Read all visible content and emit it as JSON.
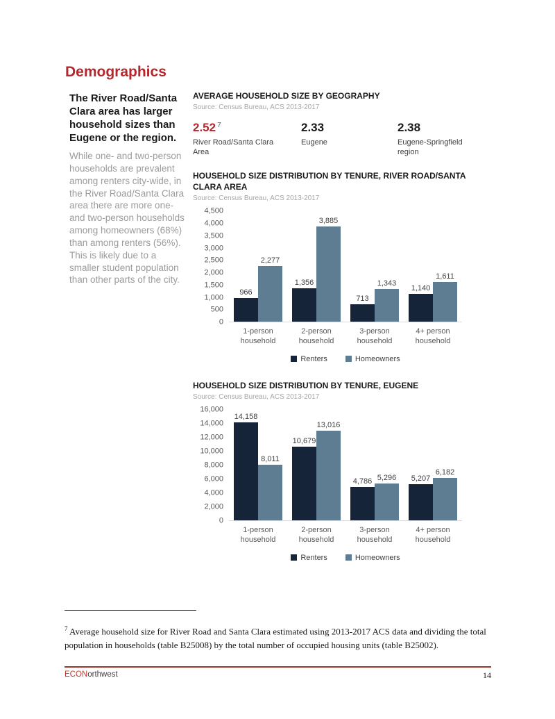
{
  "page": {
    "title": "Demographics",
    "accent_red": "#b3282d"
  },
  "sidebar": {
    "heading": "The River Road/Santa Clara area has larger household sizes than Eugene or the region.",
    "body": "While one- and two-person households are prevalent among renters city-wide, in the River Road/Santa Clara area there are more one- and two-person households among homeowners (68%) than among renters (56%). This is likely due to a smaller student population than other parts of the city."
  },
  "avg_household": {
    "title": "AVERAGE HOUSEHOLD SIZE BY GEOGRAPHY",
    "source": "Source: Census Bureau, ACS 2013-2017",
    "stats": [
      {
        "value": "2.52",
        "footnote_marker": "7",
        "label": "River Road/Santa Clara Area",
        "highlight": true
      },
      {
        "value": "2.33",
        "footnote_marker": "",
        "label": "Eugene",
        "highlight": false
      },
      {
        "value": "2.38",
        "footnote_marker": "",
        "label": "Eugene-Springfield region",
        "highlight": false
      }
    ]
  },
  "chart_data": [
    {
      "type": "bar",
      "title": "HOUSEHOLD SIZE DISTRIBUTION BY TENURE, RIVER ROAD/SANTA CLARA AREA",
      "source": "Source: Census Bureau, ACS 2013-2017",
      "categories": [
        "1-person household",
        "2-person household",
        "3-person household",
        "4+ person household"
      ],
      "series": [
        {
          "name": "Renters",
          "color": "#16243a",
          "values": [
            966,
            1356,
            713,
            1140
          ]
        },
        {
          "name": "Homeowners",
          "color": "#5e7d93",
          "values": [
            2277,
            3885,
            1343,
            1611
          ]
        }
      ],
      "ylim": [
        0,
        4500
      ],
      "ytick_step": 500,
      "grid": false,
      "legend_position": "bottom",
      "xlabel": "",
      "ylabel": ""
    },
    {
      "type": "bar",
      "title": "HOUSEHOLD SIZE DISTRIBUTION BY TENURE, EUGENE",
      "source": "Source: Census Bureau, ACS 2013-2017",
      "categories": [
        "1-person household",
        "2-person household",
        "3-person household",
        "4+ person household"
      ],
      "series": [
        {
          "name": "Renters",
          "color": "#16243a",
          "values": [
            14158,
            10679,
            4786,
            5207
          ]
        },
        {
          "name": "Homeowners",
          "color": "#5e7d93",
          "values": [
            8011,
            13016,
            5296,
            6182
          ]
        }
      ],
      "ylim": [
        0,
        16000
      ],
      "ytick_step": 2000,
      "grid": false,
      "legend_position": "bottom",
      "xlabel": "",
      "ylabel": ""
    }
  ],
  "footnote": {
    "marker": "7",
    "text": " Average household size for River Road and Santa Clara estimated using 2013-2017 ACS data and dividing the total population in households (table B25008) by the total number of occupied housing units (table B25002)."
  },
  "footer": {
    "brand_red": "ECON",
    "brand_rest": "orthwest",
    "page_number": "14"
  }
}
